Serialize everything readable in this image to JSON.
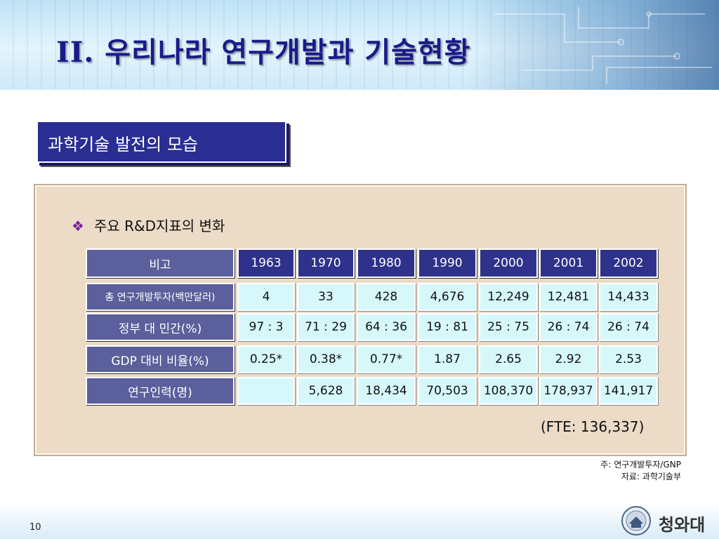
{
  "title": "II. 우리나라 연구개발과 기술현황",
  "subtitle": "과학기술 발전의 모습",
  "bullet_symbol": "❖",
  "bullet_text": "주요 R&D지표의 변화",
  "table": {
    "header": [
      "비고",
      "1963",
      "1970",
      "1980",
      "1990",
      "2000",
      "2001",
      "2002"
    ],
    "rows": [
      {
        "label": "총 연구개발투자(백만달러)",
        "values": [
          "4",
          "33",
          "428",
          "4,676",
          "12,249",
          "12,481",
          "14,433"
        ]
      },
      {
        "label": "정부 대 민간(%)",
        "values": [
          "97 : 3",
          "71 : 29",
          "64 : 36",
          "19 : 81",
          "25 : 75",
          "26 : 74",
          "26 : 74"
        ]
      },
      {
        "label": "GDP 대비 비율(%)",
        "values": [
          "0.25*",
          "0.38*",
          "0.77*",
          "1.87",
          "2.65",
          "2.92",
          "2.53"
        ]
      },
      {
        "label": "연구인력(명)",
        "values": [
          "",
          "5,628",
          "18,434",
          "70,503",
          "108,370",
          "178,937",
          "141,917"
        ]
      }
    ]
  },
  "fte_note": "(FTE: 136,337)",
  "notes": [
    "주: 연구개발투자/GNP",
    "자료: 과학기술부"
  ],
  "page_number": "10",
  "logo_text": "청와대",
  "colors": {
    "title": "#1a1a8a",
    "subtitle_bg": "#2a2e92",
    "panel_bg": "#ebdbc7",
    "label_cell_bg": "#5b5f9b",
    "year_cell_bg": "#2f328a",
    "data_cell_bg": "#d6f8fb"
  }
}
